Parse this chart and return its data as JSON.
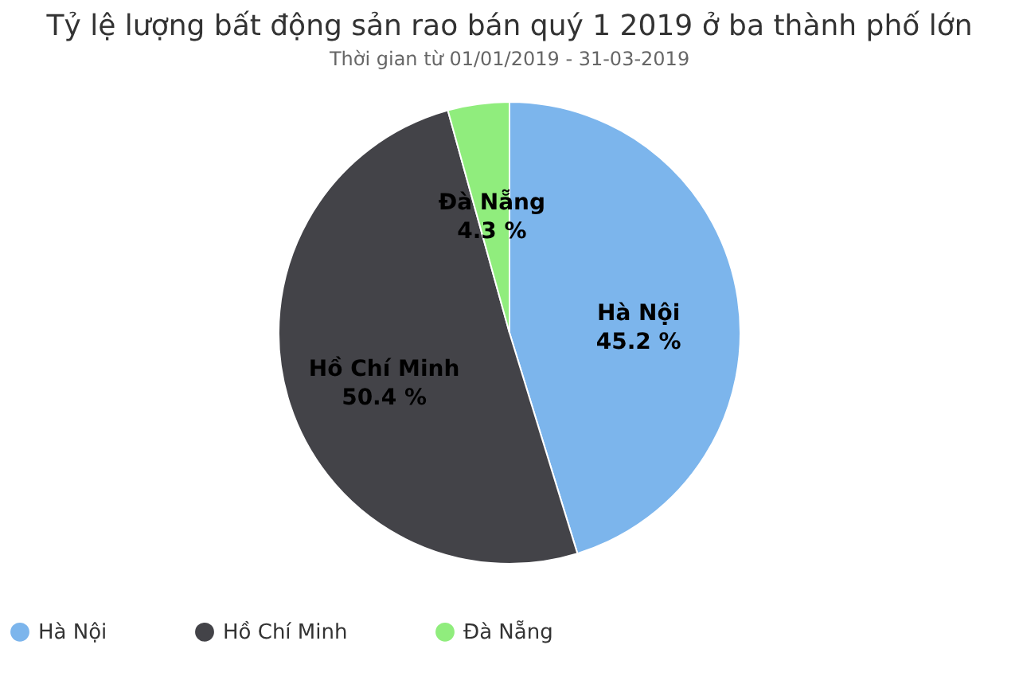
{
  "chart_data": {
    "type": "pie",
    "title": "Tỷ lệ lượng bất động sản rao bán quý 1 2019 ở ba thành phố lớn",
    "subtitle": "Thời gian từ 01/01/2019 - 31-03-2019",
    "categories": [
      "Hà Nội",
      "Hồ Chí Minh",
      "Đà Nẵng"
    ],
    "values": [
      45.2,
      50.4,
      4.3
    ],
    "colors": [
      "#7cb5ec",
      "#434348",
      "#90ed7d"
    ],
    "value_labels": [
      "45.2 %",
      "50.4 %",
      "4.3 %"
    ],
    "legend": "bottom"
  }
}
